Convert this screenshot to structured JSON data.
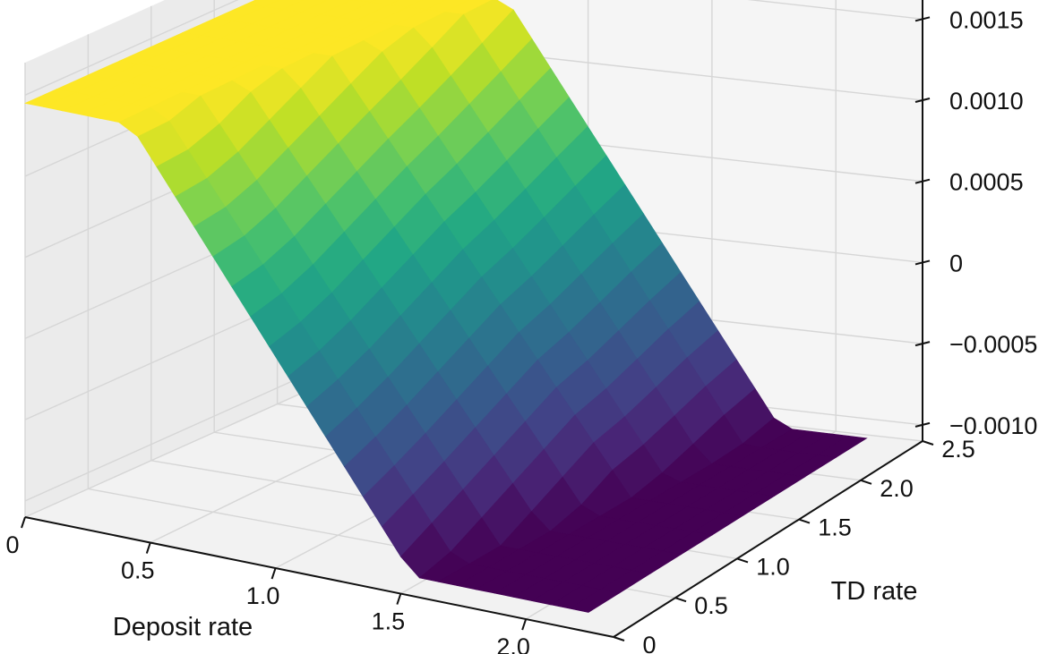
{
  "chart_data": {
    "type": "surface3d",
    "colormap": "viridis",
    "grid": true,
    "xlabel": "Deposit rate",
    "ylabel": "TD rate",
    "zlabel": "",
    "xlim": [
      0,
      2.35
    ],
    "ylim": [
      0,
      2.5
    ],
    "zlim": [
      -0.0011,
      0.0017
    ],
    "x_ticks": [
      {
        "value": 0,
        "label": "0"
      },
      {
        "value": 0.5,
        "label": "0.5"
      },
      {
        "value": 1.0,
        "label": "1.0"
      },
      {
        "value": 1.5,
        "label": "1.5"
      },
      {
        "value": 2.0,
        "label": "2.0"
      }
    ],
    "y_ticks": [
      {
        "value": 0,
        "label": "0"
      },
      {
        "value": 0.5,
        "label": "0.5"
      },
      {
        "value": 1.0,
        "label": "1.0"
      },
      {
        "value": 1.5,
        "label": "1.5"
      },
      {
        "value": 2.0,
        "label": "2.0"
      },
      {
        "value": 2.5,
        "label": "2.5"
      }
    ],
    "z_ticks": [
      {
        "value": -0.001,
        "label": "−0.0010"
      },
      {
        "value": -0.0005,
        "label": "−0.0005"
      },
      {
        "value": 0,
        "label": "0"
      },
      {
        "value": 0.0005,
        "label": "0.0005"
      },
      {
        "value": 0.001,
        "label": "0.0010"
      },
      {
        "value": 0.0015,
        "label": "0.0015"
      }
    ],
    "x": [
      0,
      0.25,
      0.5,
      0.75,
      1.0,
      1.25,
      1.5,
      1.75,
      2.0,
      2.25
    ],
    "y": [
      0,
      0.25,
      0.5,
      0.75,
      1.0,
      1.25,
      1.5,
      1.75,
      2.0,
      2.25
    ],
    "z_high": 0.00145,
    "z_low": -0.00098,
    "x_high_end": [
      0.42,
      0.42,
      0.45,
      0.5,
      0.55,
      0.6,
      0.65,
      0.7,
      0.75,
      0.8
    ],
    "x_low_start": [
      1.55,
      1.6,
      1.65,
      1.7,
      1.75,
      1.8,
      1.82,
      1.85,
      1.88,
      1.9
    ]
  }
}
